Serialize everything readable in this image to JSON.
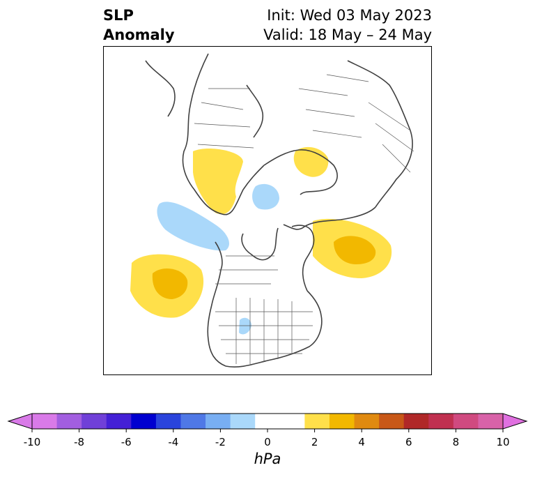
{
  "title": {
    "left_line1": "SLP",
    "left_line2": "Anomaly",
    "init": "Init: Wed 03 May 2023",
    "valid": "Valid: 18 May – 24 May"
  },
  "colorbar": {
    "unit": "hPa",
    "ticks": [
      "-10",
      "-8",
      "-6",
      "-4",
      "-2",
      "0",
      "2",
      "4",
      "6",
      "8",
      "10"
    ],
    "colors": [
      "#d97ae8",
      "#a25ee0",
      "#7040d8",
      "#4420d6",
      "#0000d0",
      "#2a44dc",
      "#4f78e6",
      "#78aef2",
      "#aad8fa",
      "#ffffff",
      "#ffffff",
      "#ffe04a",
      "#f2b800",
      "#e08a10",
      "#c85818",
      "#b02828",
      "#c03050",
      "#d04a80",
      "#d862a8"
    ],
    "under_color": "#d97ae8",
    "over_color": "#e070e0"
  },
  "anomaly_colors": {
    "light_yellow": "#ffe04a",
    "gold": "#f2b800",
    "light_blue": "#aad8fa"
  }
}
